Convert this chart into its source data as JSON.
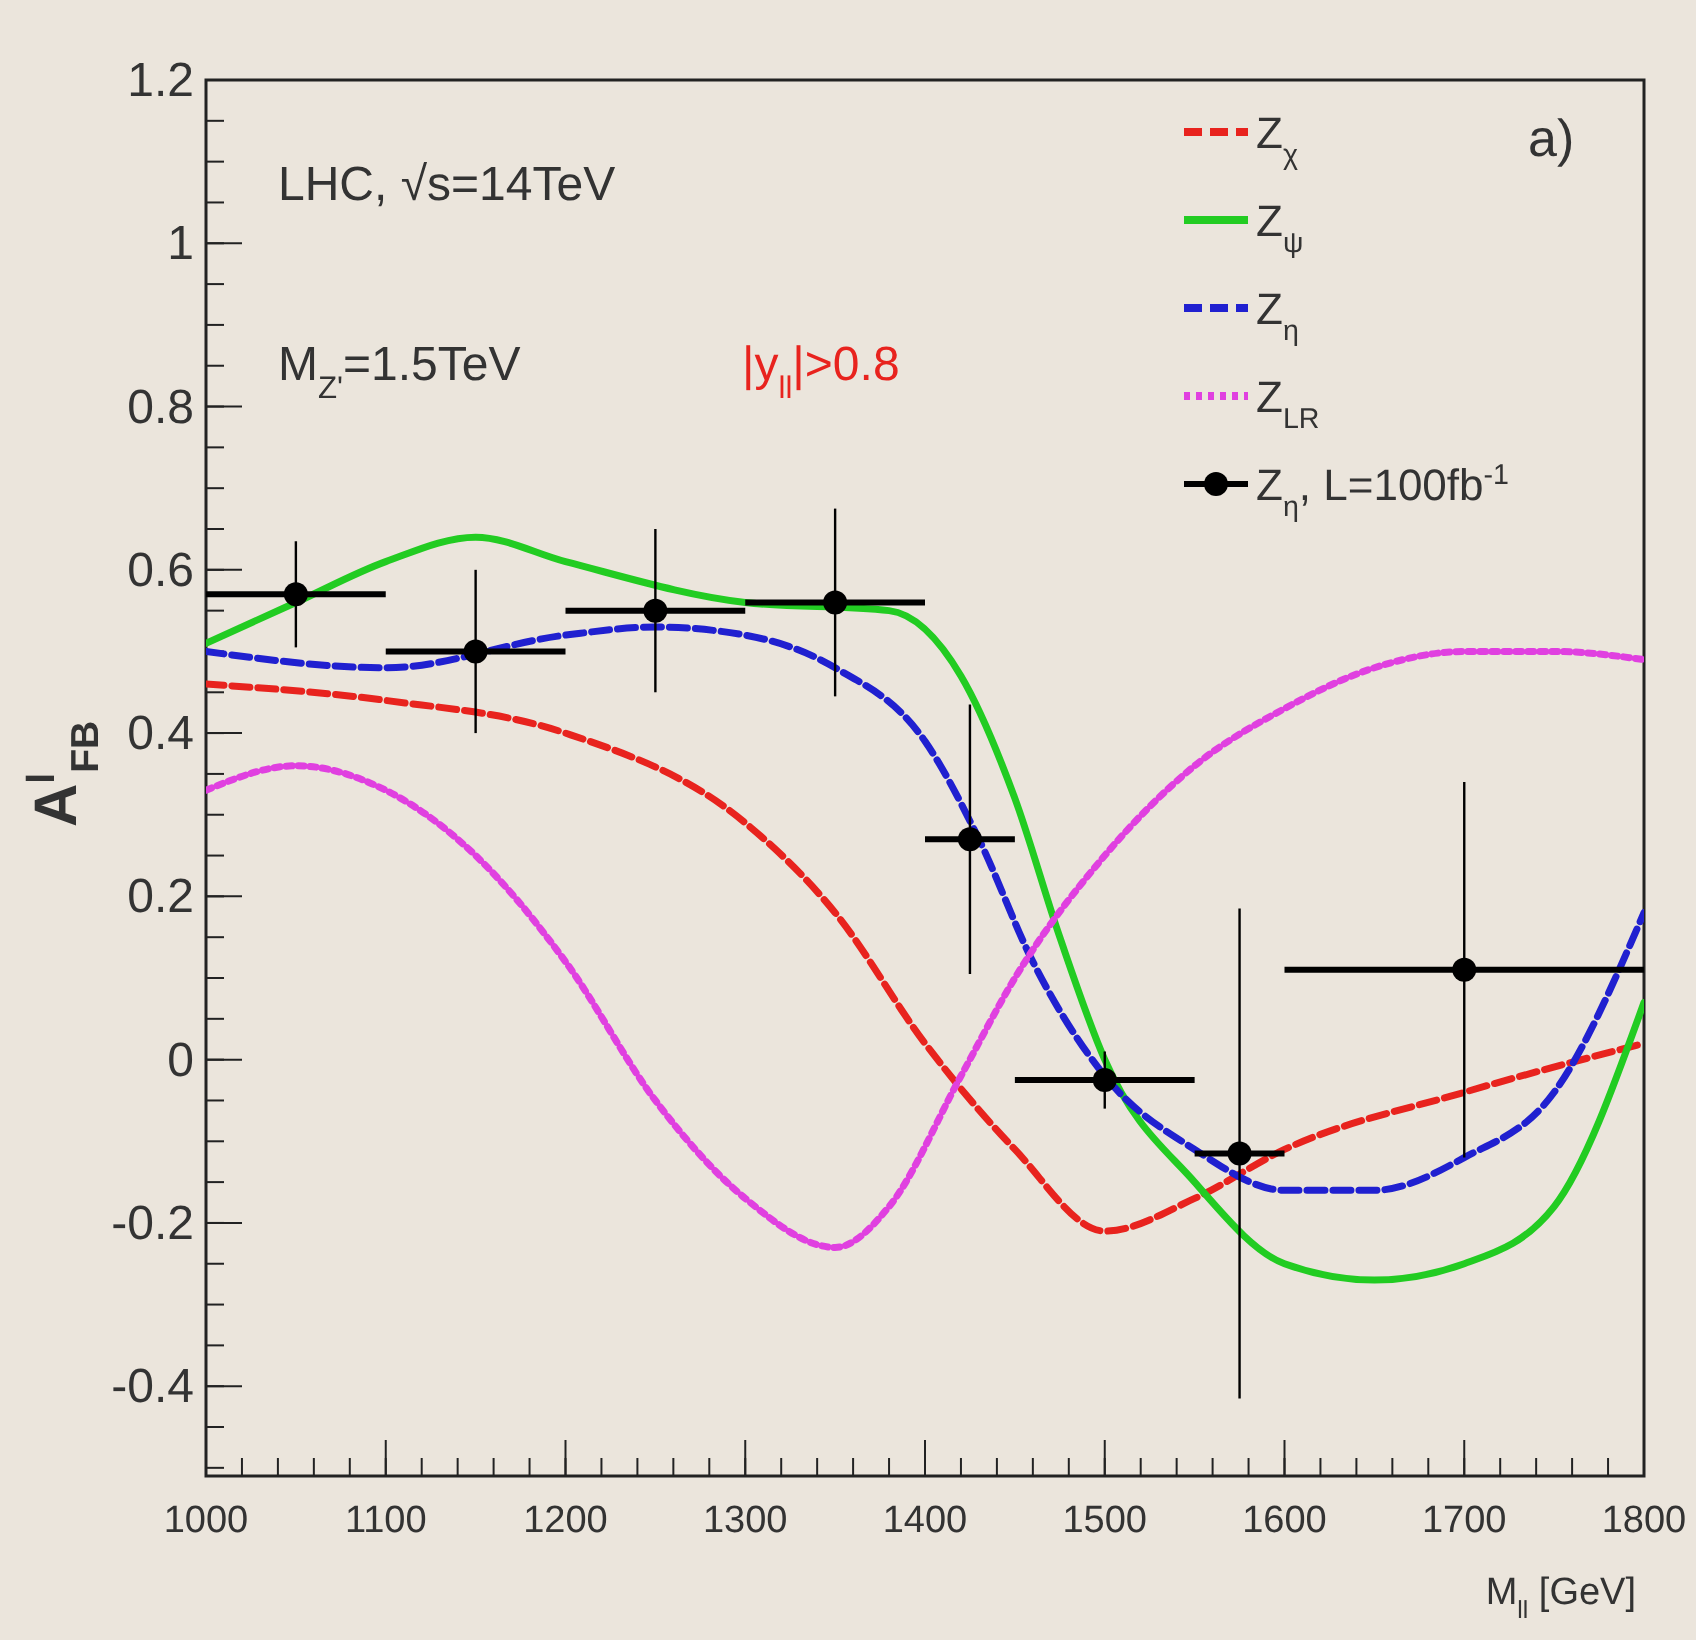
{
  "chart_data": {
    "type": "line",
    "xlabel": "M$_{ll}$ [GeV]",
    "ylabel": "A$^{l}$$_{FB}$",
    "xlim": [
      1000,
      1800
    ],
    "xticks": [
      1000,
      1100,
      1200,
      1300,
      1400,
      1500,
      1600,
      1700,
      1800
    ],
    "ylim": [
      -0.51,
      1.2
    ],
    "yticks": [
      {
        "value": -0.4,
        "label": "-0.4"
      },
      {
        "value": -0.2,
        "label": "-0.2"
      },
      0,
      0.2,
      0.4,
      0.6,
      0.8,
      1,
      1.2
    ],
    "grid": false,
    "legend": "top right",
    "annotations": [
      "a)",
      "LHC, √s=14TeV",
      "M$_{Z'}$=1.5TeV",
      "|y$_{ll}$|>0.8"
    ],
    "series": [
      {
        "name": "Z$_{χ}$",
        "color": "#e8231e",
        "line_style": "dashed",
        "x": [
          1000,
          1100,
          1200,
          1300,
          1350,
          1400,
          1450,
          1500,
          1550,
          1600,
          1700,
          1800
        ],
        "values": [
          0.46,
          0.44,
          0.4,
          0.29,
          0.18,
          0.02,
          -0.11,
          -0.21,
          -0.17,
          -0.11,
          -0.04,
          0.02
        ]
      },
      {
        "name": "Z$_{ψ}$",
        "color": "#22cc22",
        "line_style": "solid",
        "x": [
          1000,
          1050,
          1100,
          1150,
          1200,
          1300,
          1380,
          1420,
          1450,
          1475,
          1500,
          1550,
          1600,
          1650,
          1700,
          1750,
          1800
        ],
        "values": [
          0.51,
          0.56,
          0.61,
          0.64,
          0.61,
          0.56,
          0.55,
          0.47,
          0.32,
          0.15,
          0,
          -0.15,
          -0.25,
          -0.27,
          -0.25,
          -0.18,
          0.07
        ]
      },
      {
        "name": "Z$_{η}$",
        "color": "#2020d0",
        "line_style": "dashed",
        "x": [
          1000,
          1100,
          1200,
          1250,
          1300,
          1350,
          1400,
          1430,
          1460,
          1500,
          1550,
          1600,
          1650,
          1700,
          1750,
          1800
        ],
        "values": [
          0.5,
          0.48,
          0.52,
          0.53,
          0.52,
          0.48,
          0.39,
          0.27,
          0.12,
          -0.02,
          -0.11,
          -0.16,
          -0.16,
          -0.12,
          -0.04,
          0.18
        ]
      },
      {
        "name": "Z$_{LR}$",
        "color": "#e040e0",
        "line_style": "dotted",
        "x": [
          1000,
          1050,
          1100,
          1150,
          1200,
          1250,
          1300,
          1350,
          1380,
          1420,
          1450,
          1500,
          1550,
          1600,
          1650,
          1700,
          1750,
          1800
        ],
        "values": [
          0.33,
          0.36,
          0.33,
          0.25,
          0.12,
          -0.05,
          -0.17,
          -0.23,
          -0.18,
          -0.02,
          0.1,
          0.25,
          0.36,
          0.43,
          0.48,
          0.5,
          0.5,
          0.49
        ]
      },
      {
        "name": "Z$_{η}$, L=100fb$^{-1}$",
        "type": "scatter",
        "color": "#000000",
        "marker": "circle",
        "x": [
          1050,
          1150,
          1250,
          1350,
          1425,
          1500,
          1575,
          1700
        ],
        "values": [
          0.57,
          0.5,
          0.55,
          0.56,
          0.27,
          -0.025,
          -0.115,
          0.11
        ],
        "errors": [
          0.065,
          0.1,
          0.1,
          0.115,
          0.165,
          0.035,
          0.3,
          0.23
        ],
        "xerrors": [
          50,
          50,
          50,
          50,
          25,
          50,
          25,
          100
        ]
      }
    ]
  }
}
